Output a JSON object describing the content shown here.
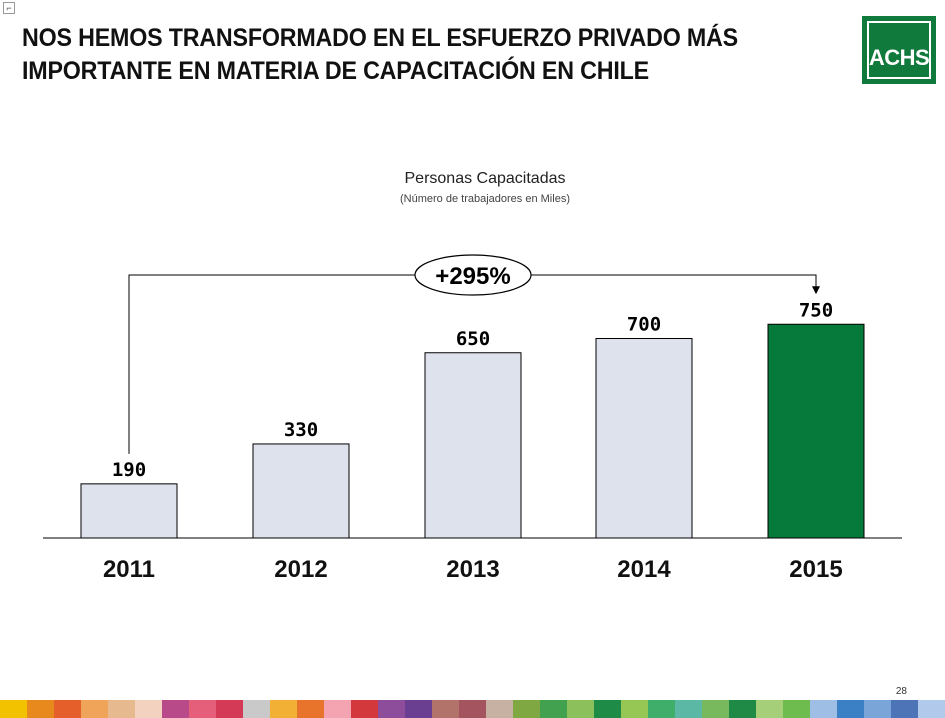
{
  "slide": {
    "title_line1": "NOS HEMOS TRANSFORMADO EN EL ESFUERZO PRIVADO MÁS",
    "title_line2": "IMPORTANTE EN MATERIA DE CAPACITACIÓN EN CHILE",
    "logo_text": "ACHS",
    "page_number": "28"
  },
  "chart_data": {
    "type": "bar",
    "title": "Personas Capacitadas",
    "subtitle": "(Número de trabajadores en Miles)",
    "categories": [
      "2011",
      "2012",
      "2013",
      "2014",
      "2015"
    ],
    "values": [
      190,
      330,
      650,
      700,
      750
    ],
    "value_labels": [
      "190",
      "330",
      "650",
      "700",
      "750"
    ],
    "growth_label": "+295%",
    "colors": {
      "bar": "#dde2ec",
      "highlight_bar": "#067a3b",
      "bar_border": "#000000",
      "highlight_index": 4
    }
  },
  "colors": {
    "brand_green": "#0f7a3c",
    "stripe": [
      "#f2c100",
      "#e8891e",
      "#e55f2a",
      "#f0a45a",
      "#e7b98f",
      "#f3d3c0",
      "#b84a8a",
      "#e65f7a",
      "#d43a55",
      "#c9c9c9",
      "#f2b134",
      "#e8732b",
      "#f4a3b1",
      "#d3393c",
      "#8e4d9b",
      "#6a3f91",
      "#b2736b",
      "#a3545e",
      "#c7b1a2",
      "#7fa842",
      "#42a14f",
      "#8cc05a",
      "#1e8b47",
      "#96c653",
      "#3fae6a",
      "#5bb8a4",
      "#77b95c",
      "#1f8a45",
      "#a5cf78",
      "#6fbc4e",
      "#9fbee6",
      "#3b7fc4",
      "#7aa5d8",
      "#4c74b6",
      "#b1c9ea"
    ]
  }
}
